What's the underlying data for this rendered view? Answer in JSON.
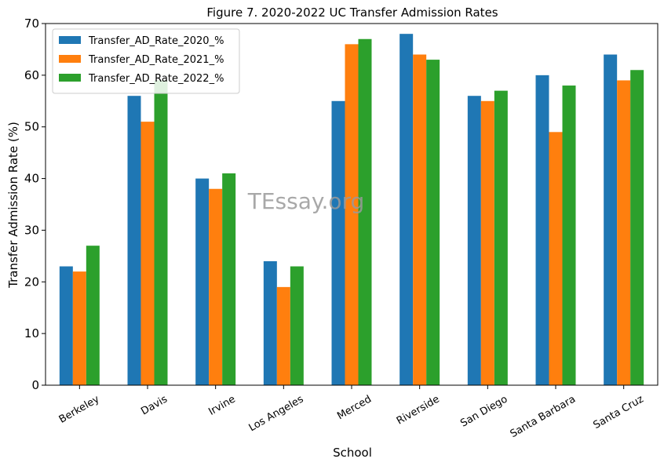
{
  "chart_data": {
    "type": "bar",
    "title": "Figure 7. 2020-2022 UC Transfer Admission Rates",
    "xlabel": "School",
    "ylabel": "Transfer Admission Rate (%)",
    "ylim": [
      0,
      70
    ],
    "yticks": [
      0,
      10,
      20,
      30,
      40,
      50,
      60,
      70
    ],
    "categories": [
      "Berkeley",
      "Davis",
      "Irvine",
      "Los Angeles",
      "Merced",
      "Riverside",
      "San Diego",
      "Santa Barbara",
      "Santa Cruz"
    ],
    "series": [
      {
        "name": "Transfer_AD_Rate_2020_%",
        "color": "#1f77b4",
        "values": [
          23,
          56,
          40,
          24,
          55,
          68,
          56,
          60,
          64
        ]
      },
      {
        "name": "Transfer_AD_Rate_2021_%",
        "color": "#ff7f0e",
        "values": [
          22,
          51,
          38,
          19,
          66,
          64,
          55,
          49,
          59
        ]
      },
      {
        "name": "Transfer_AD_Rate_2022_%",
        "color": "#2ca02c",
        "values": [
          27,
          59,
          41,
          23,
          67,
          63,
          57,
          58,
          61
        ]
      }
    ],
    "legend_position": "top-left",
    "grid": false,
    "watermark": "TEssay.org"
  }
}
